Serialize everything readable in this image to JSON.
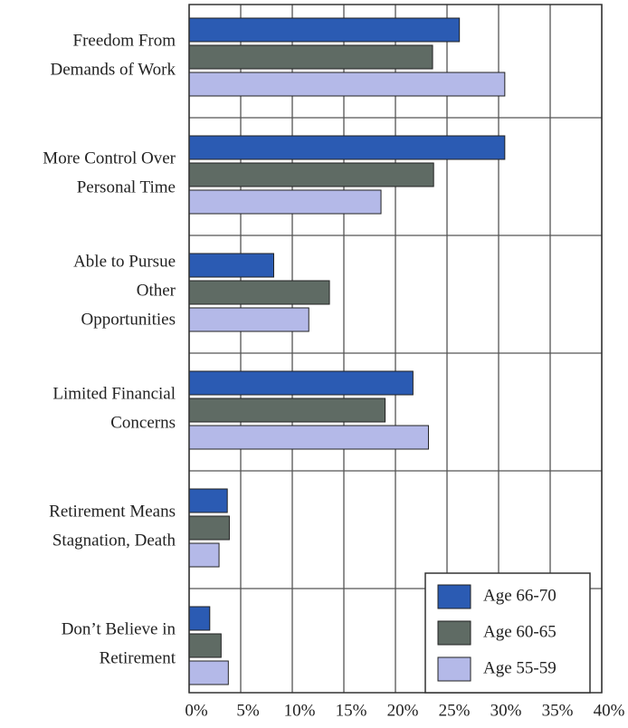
{
  "chart_data": {
    "type": "bar",
    "orientation": "horizontal",
    "categories": [
      [
        "Freedom From",
        "Demands of Work"
      ],
      [
        "More Control Over",
        "Personal Time"
      ],
      [
        "Able to Pursue",
        "Other",
        "Opportunities"
      ],
      [
        "Limited Financial",
        "Concerns"
      ],
      [
        "Retirement Means",
        "Stagnation, Death"
      ],
      [
        "Don’t Believe in",
        "Retirement"
      ]
    ],
    "series": [
      {
        "name": "Age 66-70",
        "color": "#2b5bb3",
        "values": [
          26.2,
          30.6,
          8.2,
          21.7,
          3.7,
          2
        ]
      },
      {
        "name": "Age 60-65",
        "color": "#5f6b64",
        "values": [
          23.6,
          23.7,
          13.6,
          19,
          3.9,
          3.1
        ]
      },
      {
        "name": "Age 55-59",
        "color": "#b4b9e8",
        "values": [
          30.6,
          18.6,
          11.6,
          23.2,
          2.9,
          3.8
        ]
      }
    ],
    "xlim": [
      0,
      40
    ],
    "xticks": [
      {
        "value": 0,
        "label": "0%"
      },
      {
        "value": 5,
        "label": "5%"
      },
      {
        "value": 10,
        "label": "10%"
      },
      {
        "value": 15,
        "label": "15%"
      },
      {
        "value": 20,
        "label": "20%"
      },
      {
        "value": 25,
        "label": "25%"
      },
      {
        "value": 30,
        "label": "30%"
      },
      {
        "value": 35,
        "label": "35%"
      },
      {
        "value": 40,
        "label": "40%"
      }
    ],
    "grid": true,
    "legend": "lower right"
  }
}
